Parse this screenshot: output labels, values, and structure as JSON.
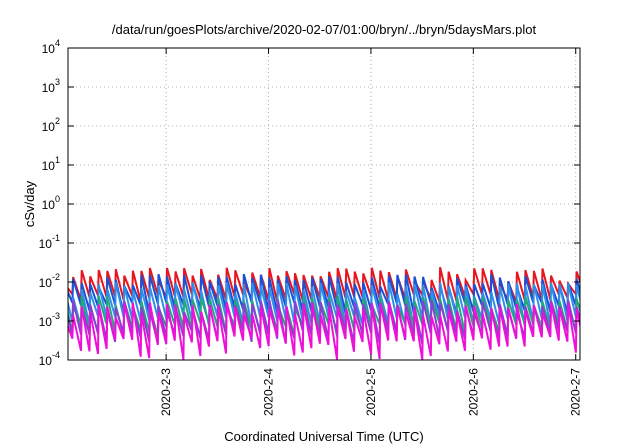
{
  "chart_data": {
    "type": "line",
    "title": "/data/run/goesPlots/archive/2020-02-07/01:00/bryn/../bryn/5daysMars.plot",
    "xlabel": "Coordinated Universal Time (UTC)",
    "ylabel": "cSv/day",
    "yscale": "log",
    "ylim": [
      0.0001,
      10000
    ],
    "y_ticks": [
      {
        "exp": -4,
        "base": "10",
        "sup": "-4"
      },
      {
        "exp": -3,
        "base": "10",
        "sup": "-3"
      },
      {
        "exp": -2,
        "base": "10",
        "sup": "-2"
      },
      {
        "exp": -1,
        "base": "10",
        "sup": "-1"
      },
      {
        "exp": 0,
        "base": "10",
        "sup": "0"
      },
      {
        "exp": 1,
        "base": "10",
        "sup": "1"
      },
      {
        "exp": 2,
        "base": "10",
        "sup": "2"
      },
      {
        "exp": 3,
        "base": "10",
        "sup": "3"
      },
      {
        "exp": 4,
        "base": "10",
        "sup": "4"
      }
    ],
    "xlim": [
      "2020-02-02T01:00",
      "2020-02-07T01:00"
    ],
    "x_ticks": [
      "2020-2-3",
      "2020-2-4",
      "2020-2-5",
      "2020-2-6",
      "2020-2-7"
    ],
    "x_tick_dates": [
      "2020-02-03",
      "2020-02-04",
      "2020-02-05",
      "2020-02-06",
      "2020-02-07"
    ],
    "grid": true,
    "period_hours": 2,
    "series": [
      {
        "color": "#e8141e",
        "peak_range": [
          0.009,
          0.024
        ],
        "trough_range": [
          0.003,
          0.005
        ]
      },
      {
        "color": "#1a4fd6",
        "peak_range": [
          0.007,
          0.016
        ],
        "trough_range": [
          0.0015,
          0.003
        ]
      },
      {
        "color": "#2f8fe8",
        "peak_range": [
          0.004,
          0.01
        ],
        "trough_range": [
          0.0007,
          0.0014
        ]
      },
      {
        "color": "#22a87a",
        "peak_range": [
          0.002,
          0.0045
        ],
        "trough_range": [
          0.0004,
          0.0009
        ]
      },
      {
        "color": "#8a3fd1",
        "peak_range": [
          0.0015,
          0.0035
        ],
        "trough_range": [
          0.00025,
          0.0006
        ]
      },
      {
        "color": "#ee10d8",
        "peak_range": [
          0.0012,
          0.003
        ],
        "trough_range": [
          0.0001,
          0.0004
        ]
      }
    ]
  }
}
